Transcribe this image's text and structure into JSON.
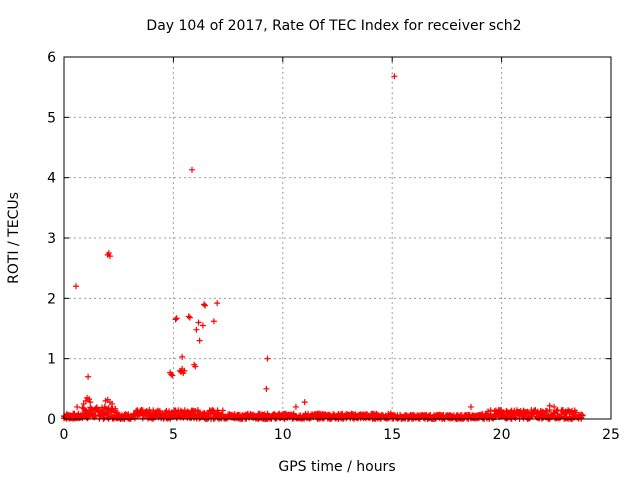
{
  "chart_data": {
    "type": "scatter",
    "title": "Day 104 of 2017, Rate Of TEC Index for receiver sch2",
    "xlabel": "GPS time / hours",
    "ylabel": "ROTI / TECUs",
    "xlim": [
      0,
      25
    ],
    "ylim": [
      0,
      6
    ],
    "xticks": [
      0,
      5,
      10,
      15,
      20,
      25
    ],
    "yticks": [
      0,
      1,
      2,
      3,
      4,
      5,
      6
    ],
    "grid": true,
    "marker": "plus",
    "color": "#ff0000",
    "series": [
      {
        "name": "ROTI",
        "points": [
          [
            0.55,
            2.2
          ],
          [
            1.1,
            0.7
          ],
          [
            2.0,
            2.72
          ],
          [
            2.05,
            2.75
          ],
          [
            2.1,
            2.7
          ],
          [
            4.85,
            0.77
          ],
          [
            4.9,
            0.74
          ],
          [
            4.95,
            0.72
          ],
          [
            5.1,
            1.65
          ],
          [
            5.15,
            1.67
          ],
          [
            5.3,
            0.8
          ],
          [
            5.35,
            0.78
          ],
          [
            5.4,
            0.83
          ],
          [
            5.45,
            0.76
          ],
          [
            5.5,
            0.8
          ],
          [
            5.4,
            1.03
          ],
          [
            5.7,
            1.7
          ],
          [
            5.75,
            1.68
          ],
          [
            5.85,
            4.13
          ],
          [
            5.95,
            0.9
          ],
          [
            6.0,
            0.87
          ],
          [
            6.05,
            1.48
          ],
          [
            6.15,
            1.6
          ],
          [
            6.2,
            1.3
          ],
          [
            6.4,
            1.9
          ],
          [
            6.45,
            1.88
          ],
          [
            6.35,
            1.55
          ],
          [
            6.85,
            1.62
          ],
          [
            7.0,
            1.92
          ],
          [
            9.3,
            1.0
          ],
          [
            9.25,
            0.5
          ],
          [
            15.1,
            5.68
          ],
          [
            1.0,
            0.3
          ],
          [
            1.05,
            0.35
          ],
          [
            1.15,
            0.33
          ],
          [
            1.2,
            0.28
          ],
          [
            1.9,
            0.3
          ],
          [
            2.0,
            0.32
          ],
          [
            2.1,
            0.28
          ],
          [
            2.2,
            0.25
          ],
          [
            0.6,
            0.2
          ],
          [
            0.9,
            0.25
          ],
          [
            10.6,
            0.2
          ],
          [
            11.0,
            0.28
          ],
          [
            18.6,
            0.2
          ],
          [
            22.2,
            0.22
          ],
          [
            22.4,
            0.2
          ]
        ]
      }
    ],
    "noise_band": {
      "description": "dense low-level ROTI values",
      "x_range": [
        0,
        23.7
      ],
      "y_range": [
        0,
        0.18
      ]
    }
  }
}
